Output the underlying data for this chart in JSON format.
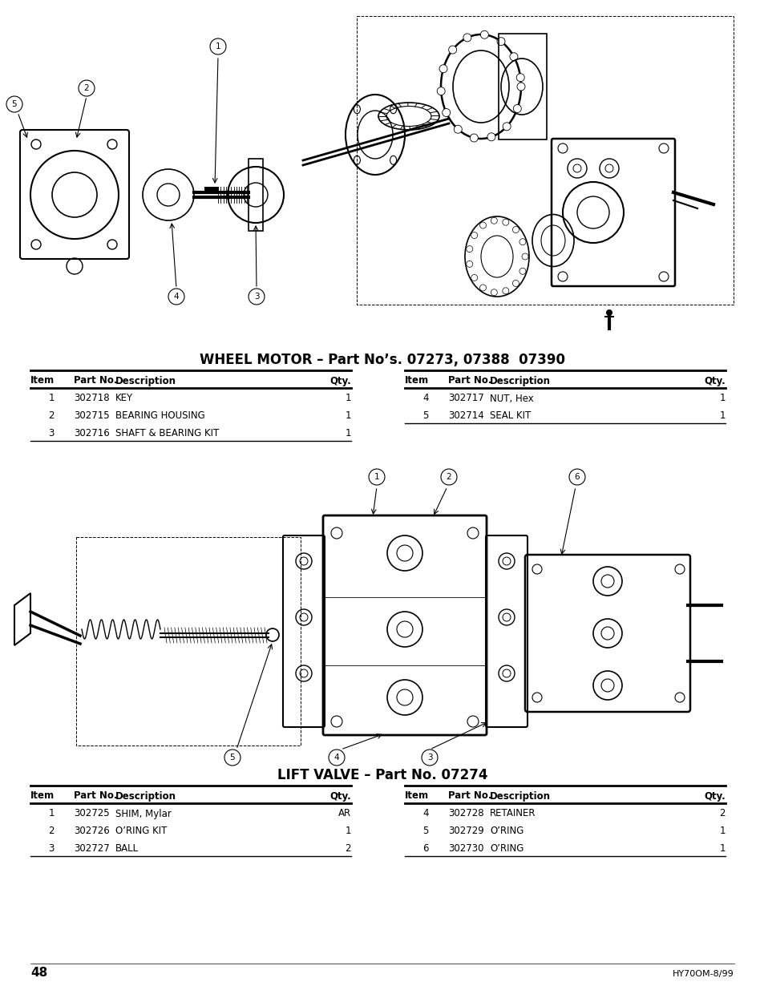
{
  "page_number": "48",
  "page_ref": "HY70OM-8/99",
  "bg_color": "#ffffff",
  "section1": {
    "title": "WHEEL MOTOR – Part No’s. 07273, 07388  07390",
    "table_left": {
      "headers": [
        "Item",
        "Part No.",
        "Description",
        "Qty."
      ],
      "rows": [
        [
          "1",
          "302718",
          "KEY",
          "1"
        ],
        [
          "2",
          "302715",
          "BEARING HOUSING",
          "1"
        ],
        [
          "3",
          "302716",
          "SHAFT & BEARING KIT",
          "1"
        ]
      ]
    },
    "table_right": {
      "headers": [
        "Item",
        "Part No.",
        "Description",
        "Qty."
      ],
      "rows": [
        [
          "4",
          "302717",
          "NUT, Hex",
          "1"
        ],
        [
          "5",
          "302714",
          "SEAL KIT",
          "1"
        ]
      ]
    }
  },
  "section2": {
    "title": "LIFT VALVE – Part No. 07274",
    "table_left": {
      "headers": [
        "Item",
        "Part No.",
        "Description",
        "Qty."
      ],
      "rows": [
        [
          "1",
          "302725",
          "SHIM, Mylar",
          "AR"
        ],
        [
          "2",
          "302726",
          "O’RING KIT",
          "1"
        ],
        [
          "3",
          "302727",
          "BALL",
          "2"
        ]
      ]
    },
    "table_right": {
      "headers": [
        "Item",
        "Part No.",
        "Description",
        "Qty."
      ],
      "rows": [
        [
          "4",
          "302728",
          "RETAINER",
          "2"
        ],
        [
          "5",
          "302729",
          "O’RING",
          "1"
        ],
        [
          "6",
          "302730",
          "O’RING",
          "1"
        ]
      ]
    }
  }
}
